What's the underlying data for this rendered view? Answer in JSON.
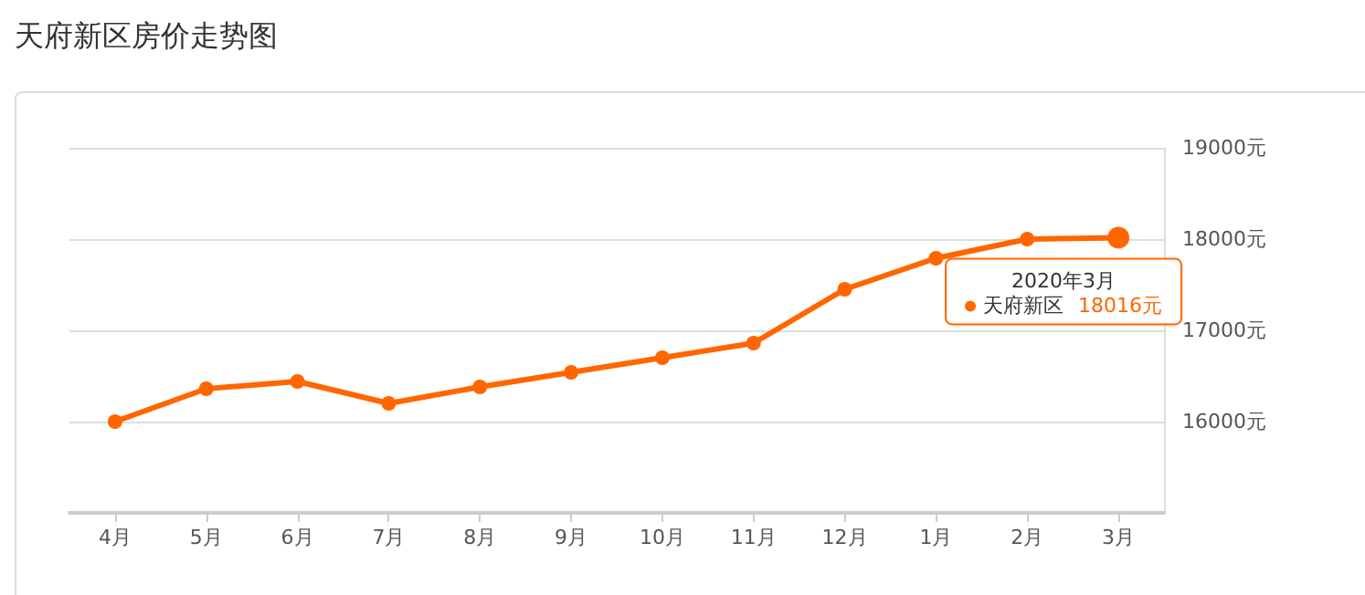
{
  "chart_data": {
    "type": "line",
    "title": "天府新区房价走势图",
    "annotations": [
      "2020年3月"
    ],
    "categories": [
      "4月",
      "5月",
      "6月",
      "7月",
      "8月",
      "9月",
      "10月",
      "11月",
      "12月",
      "1月",
      "2月",
      "3月"
    ],
    "series": [
      {
        "name": "天府新区",
        "color": "#ff6600",
        "values": [
          16000,
          16360,
          16440,
          16200,
          16380,
          16540,
          16700,
          16860,
          17450,
          17790,
          18000,
          18016
        ],
        "value_labels": [
          null,
          null,
          null,
          null,
          null,
          null,
          null,
          null,
          null,
          null,
          null,
          "18016元"
        ]
      }
    ],
    "ylim": [
      15000,
      19000
    ],
    "yticks": [
      {
        "value": 16000,
        "label": "16000元"
      },
      {
        "value": 17000,
        "label": "17000元"
      },
      {
        "value": 18000,
        "label": "18000元"
      },
      {
        "value": 19000,
        "label": "19000元"
      }
    ],
    "grid": "y",
    "marker": "circle",
    "line_style": "solid",
    "legend": "right"
  }
}
